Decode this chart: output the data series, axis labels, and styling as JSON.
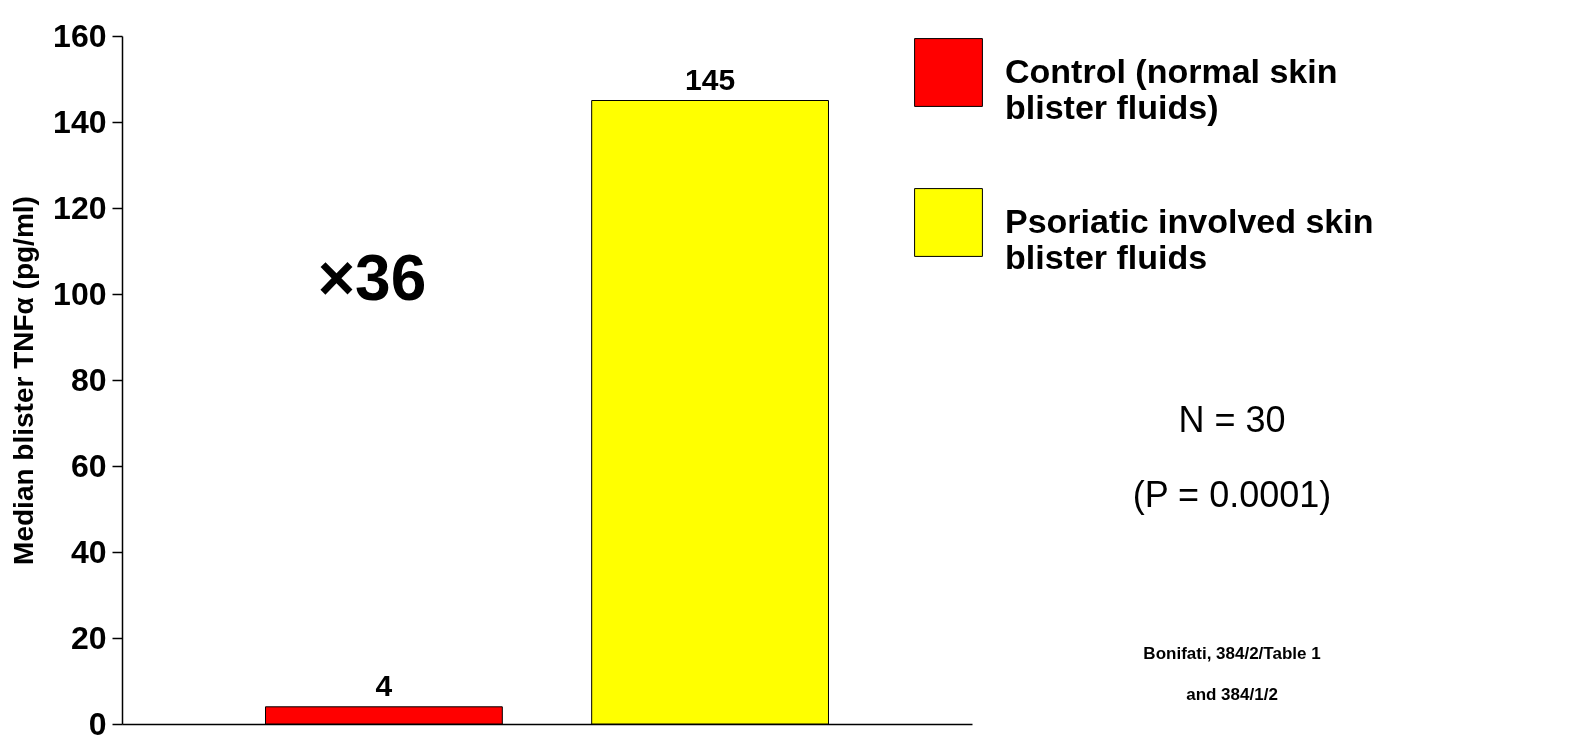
{
  "chart_data": {
    "type": "bar",
    "ylabel": "Median blister TNFα (pg/ml)",
    "categories": [
      null,
      null
    ],
    "series": [
      {
        "name": "Control (normal skin blister fluids)",
        "color": "#ff0000",
        "values": [
          4,
          null
        ]
      },
      {
        "name": "Psoriatic involved skin blister fluids",
        "color": "#ffff00",
        "values": [
          null,
          145
        ]
      }
    ],
    "ylim": [
      0,
      160
    ],
    "yticks": [
      0,
      20,
      40,
      60,
      80,
      100,
      120,
      140,
      160
    ],
    "data_labels": true,
    "legend": "top right",
    "tick_labels": "y",
    "grid": false,
    "annotations": [
      "×36",
      "N = 30",
      "(P = 0.0001)",
      "Bonifati, 384/2/Table 1\nand 384/1/2"
    ]
  }
}
